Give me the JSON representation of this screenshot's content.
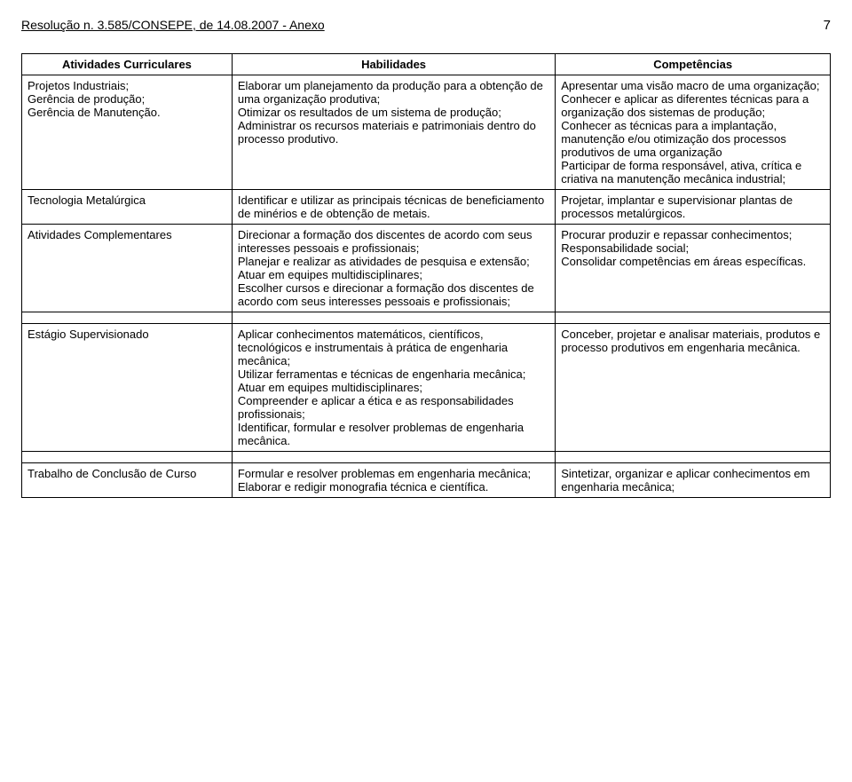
{
  "header": {
    "title": "Resolução n. 3.585/CONSEPE, de 14.08.2007 - Anexo",
    "page_number": "7"
  },
  "table": {
    "columns": {
      "c1": "Atividades Curriculares",
      "c2": "Habilidades",
      "c3": "Competências"
    },
    "rows": [
      {
        "c1": "Projetos Industriais;\nGerência de produção;\nGerência de Manutenção.",
        "c2": "Elaborar um planejamento da produção para a obtenção de uma organização produtiva;\nOtimizar os resultados de um sistema de produção;\nAdministrar os recursos materiais e patrimoniais dentro do processo produtivo.",
        "c3": "Apresentar uma visão macro de uma organização;\nConhecer e aplicar as diferentes técnicas para a organização dos sistemas de produção;\nConhecer as técnicas para a implantação, manutenção e/ou otimização dos processos produtivos  de uma organização\nParticipar de forma responsável, ativa, crítica e criativa na manutenção mecânica industrial;"
      },
      {
        "c1": "Tecnologia Metalúrgica",
        "c2": "Identificar e utilizar as principais técnicas de beneficiamento de minérios e de obtenção de metais.",
        "c3": "Projetar, implantar e supervisionar plantas de processos metalúrgicos."
      },
      {
        "c1": "Atividades Complementares",
        "c2": "Direcionar a formação dos discentes de acordo com seus interesses pessoais e profissionais;\nPlanejar e realizar as atividades de pesquisa e extensão;\nAtuar em equipes multidisciplinares;\nEscolher cursos e direcionar a formação dos discentes de acordo com seus interesses pessoais e profissionais;",
        "c3": "Procurar produzir e repassar conhecimentos;\nResponsabilidade social;\nConsolidar competências em áreas específicas."
      },
      {
        "c1": "Estágio Supervisionado",
        "c2": "Aplicar conhecimentos matemáticos, científicos, tecnológicos e instrumentais à prática de engenharia mecânica;\nUtilizar ferramentas e técnicas de engenharia mecânica;\nAtuar em equipes multidisciplinares;\nCompreender e aplicar a ética e as responsabilidades profissionais;\nIdentificar, formular e resolver problemas de engenharia mecânica.",
        "c3": "Conceber, projetar e analisar materiais, produtos e processo produtivos em engenharia mecânica."
      },
      {
        "c1": "Trabalho de Conclusão de Curso",
        "c2": "Formular e resolver problemas em engenharia mecânica;\nElaborar e redigir monografia técnica e científica.",
        "c3": "Sintetizar, organizar e aplicar conhecimentos em engenharia mecânica;"
      }
    ]
  }
}
